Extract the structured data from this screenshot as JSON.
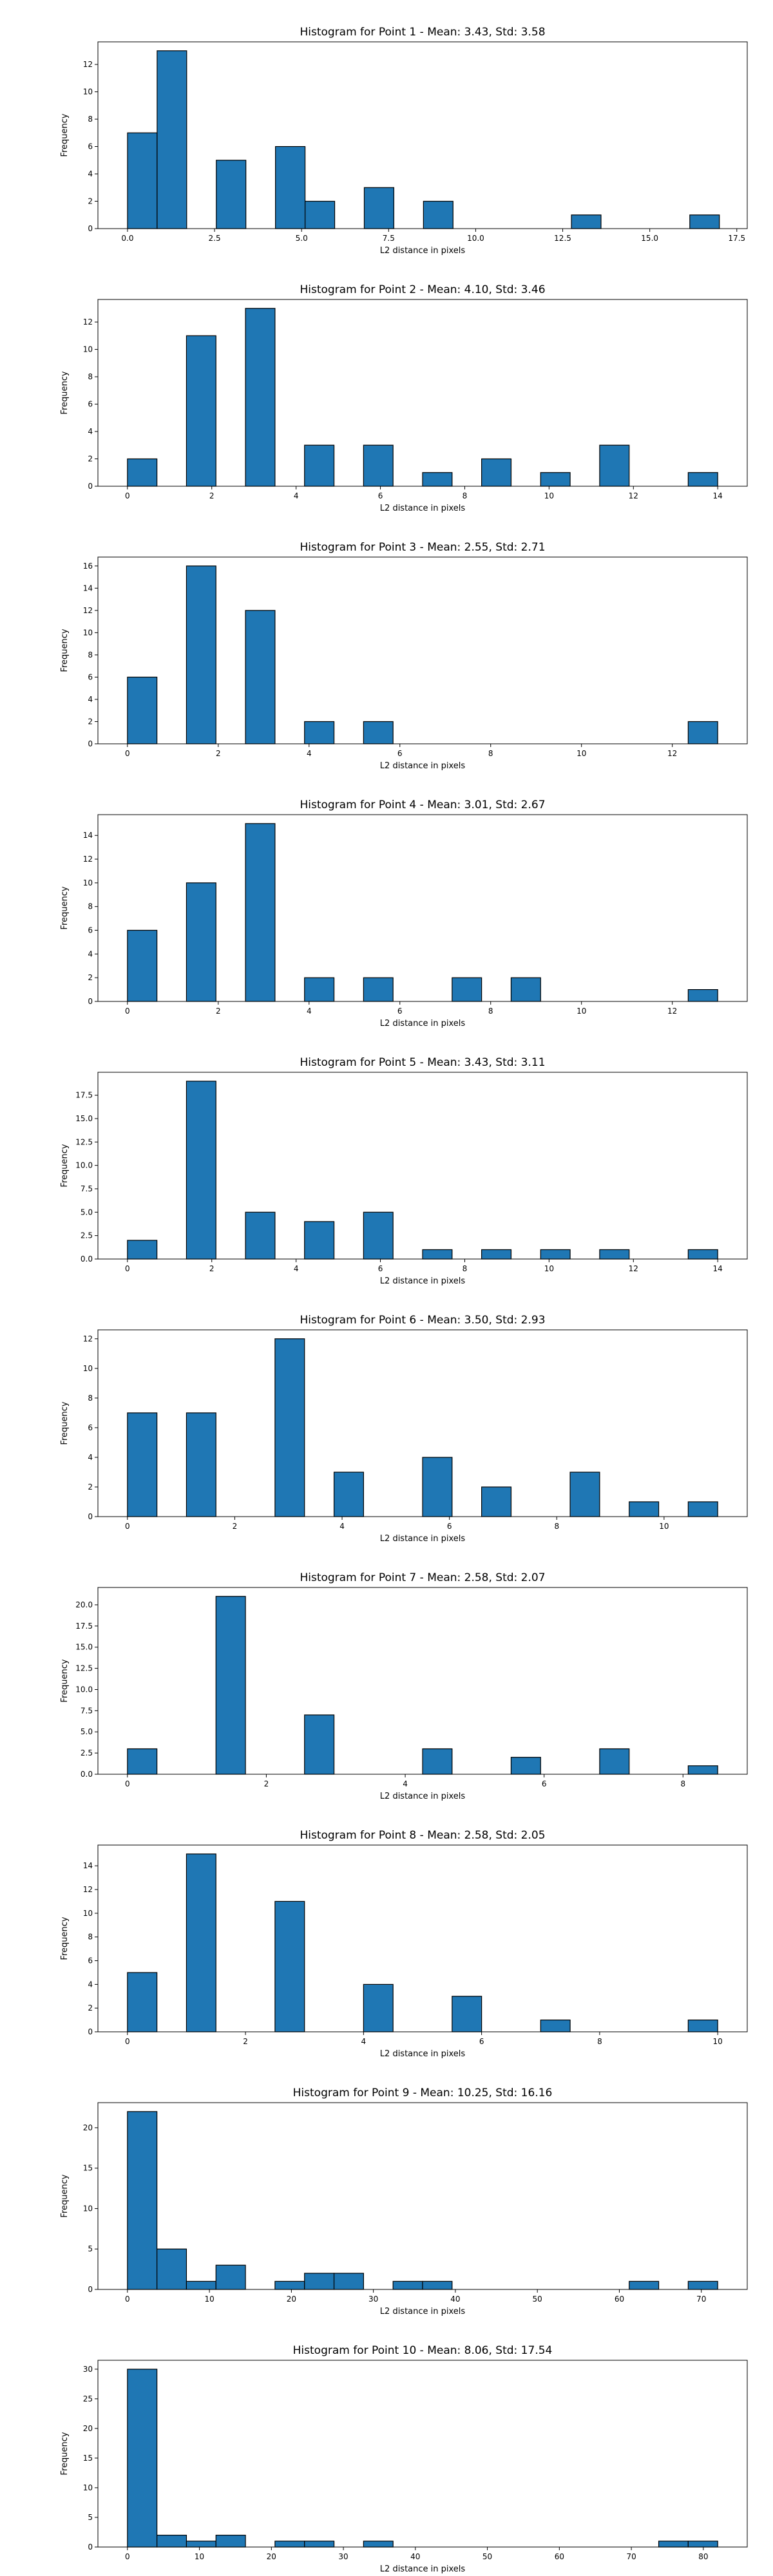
{
  "colors": {
    "bar_fill": "#1f77b4",
    "bar_edge": "#000000",
    "background": "#ffffff"
  },
  "chart_data": [
    {
      "type": "bar",
      "title": "Histogram for Point 1 - Mean: 3.43, Std: 3.58",
      "xlabel": "L2 distance in pixels",
      "ylabel": "Frequency",
      "xlim": [
        -0.85,
        17.8
      ],
      "ylim": [
        0,
        13.65
      ],
      "xticks": [
        0,
        2.5,
        5,
        7.5,
        10,
        12.5,
        15,
        17.5
      ],
      "xtick_labels": [
        "0.0",
        "2.5",
        "5.0",
        "7.5",
        "10.0",
        "12.5",
        "15.0",
        "17.5"
      ],
      "yticks": [
        0,
        2,
        4,
        6,
        8,
        10,
        12
      ],
      "ytick_labels": [
        "0",
        "2",
        "4",
        "6",
        "8",
        "10",
        "12"
      ],
      "bins": [
        {
          "x0": 0.0,
          "x1": 0.85,
          "count": 7
        },
        {
          "x0": 0.85,
          "x1": 1.7,
          "count": 13
        },
        {
          "x0": 2.55,
          "x1": 3.4,
          "count": 5
        },
        {
          "x0": 4.25,
          "x1": 5.1,
          "count": 6
        },
        {
          "x0": 5.1,
          "x1": 5.95,
          "count": 2
        },
        {
          "x0": 6.8,
          "x1": 7.65,
          "count": 3
        },
        {
          "x0": 8.5,
          "x1": 9.35,
          "count": 2
        },
        {
          "x0": 12.75,
          "x1": 13.6,
          "count": 1
        },
        {
          "x0": 16.15,
          "x1": 17.0,
          "count": 1
        }
      ]
    },
    {
      "type": "bar",
      "title": "Histogram for Point 2 - Mean: 4.10, Std: 3.46",
      "xlabel": "L2 distance in pixels",
      "ylabel": "Frequency",
      "xlim": [
        -0.7,
        14.7
      ],
      "ylim": [
        0,
        13.65
      ],
      "xticks": [
        0,
        2,
        4,
        6,
        8,
        10,
        12,
        14
      ],
      "xtick_labels": [
        "0",
        "2",
        "4",
        "6",
        "8",
        "10",
        "12",
        "14"
      ],
      "yticks": [
        0,
        2,
        4,
        6,
        8,
        10,
        12
      ],
      "ytick_labels": [
        "0",
        "2",
        "4",
        "6",
        "8",
        "10",
        "12"
      ],
      "bins": [
        {
          "x0": 0.0,
          "x1": 0.7,
          "count": 2
        },
        {
          "x0": 1.4,
          "x1": 2.1,
          "count": 11
        },
        {
          "x0": 2.8,
          "x1": 3.5,
          "count": 13
        },
        {
          "x0": 4.2,
          "x1": 4.9,
          "count": 3
        },
        {
          "x0": 5.6,
          "x1": 6.3,
          "count": 3
        },
        {
          "x0": 7.0,
          "x1": 7.7,
          "count": 1
        },
        {
          "x0": 8.4,
          "x1": 9.1,
          "count": 2
        },
        {
          "x0": 9.8,
          "x1": 10.5,
          "count": 1
        },
        {
          "x0": 11.2,
          "x1": 11.9,
          "count": 3
        },
        {
          "x0": 13.3,
          "x1": 14.0,
          "count": 1
        }
      ]
    },
    {
      "type": "bar",
      "title": "Histogram for Point 3 - Mean: 2.55, Std: 2.71",
      "xlabel": "L2 distance in pixels",
      "ylabel": "Frequency",
      "xlim": [
        -0.65,
        13.65
      ],
      "ylim": [
        0,
        16.8
      ],
      "xticks": [
        0,
        2,
        4,
        6,
        8,
        10,
        12
      ],
      "xtick_labels": [
        "0",
        "2",
        "4",
        "6",
        "8",
        "10",
        "12"
      ],
      "yticks": [
        0,
        2,
        4,
        6,
        8,
        10,
        12,
        14,
        16
      ],
      "ytick_labels": [
        "0",
        "2",
        "4",
        "6",
        "8",
        "10",
        "12",
        "14",
        "16"
      ],
      "bins": [
        {
          "x0": 0.0,
          "x1": 0.65,
          "count": 6
        },
        {
          "x0": 1.3,
          "x1": 1.95,
          "count": 16
        },
        {
          "x0": 2.6,
          "x1": 3.25,
          "count": 12
        },
        {
          "x0": 3.9,
          "x1": 4.55,
          "count": 2
        },
        {
          "x0": 5.2,
          "x1": 5.85,
          "count": 2
        },
        {
          "x0": 12.35,
          "x1": 13.0,
          "count": 2
        }
      ]
    },
    {
      "type": "bar",
      "title": "Histogram for Point 4 - Mean: 3.01, Std: 2.67",
      "xlabel": "L2 distance in pixels",
      "ylabel": "Frequency",
      "xlim": [
        -0.65,
        13.65
      ],
      "ylim": [
        0,
        15.75
      ],
      "xticks": [
        0,
        2,
        4,
        6,
        8,
        10,
        12
      ],
      "xtick_labels": [
        "0",
        "2",
        "4",
        "6",
        "8",
        "10",
        "12"
      ],
      "yticks": [
        0,
        2,
        4,
        6,
        8,
        10,
        12,
        14
      ],
      "ytick_labels": [
        "0",
        "2",
        "4",
        "6",
        "8",
        "10",
        "12",
        "14"
      ],
      "bins": [
        {
          "x0": 0.0,
          "x1": 0.65,
          "count": 6
        },
        {
          "x0": 1.3,
          "x1": 1.95,
          "count": 10
        },
        {
          "x0": 2.6,
          "x1": 3.25,
          "count": 15
        },
        {
          "x0": 3.9,
          "x1": 4.55,
          "count": 2
        },
        {
          "x0": 5.2,
          "x1": 5.85,
          "count": 2
        },
        {
          "x0": 7.15,
          "x1": 7.8,
          "count": 2
        },
        {
          "x0": 8.45,
          "x1": 9.1,
          "count": 2
        },
        {
          "x0": 12.35,
          "x1": 13.0,
          "count": 1
        }
      ]
    },
    {
      "type": "bar",
      "title": "Histogram for Point 5 - Mean: 3.43, Std: 3.11",
      "xlabel": "L2 distance in pixels",
      "ylabel": "Frequency",
      "xlim": [
        -0.7,
        14.7
      ],
      "ylim": [
        0,
        19.95
      ],
      "xticks": [
        0,
        2,
        4,
        6,
        8,
        10,
        12,
        14
      ],
      "xtick_labels": [
        "0",
        "2",
        "4",
        "6",
        "8",
        "10",
        "12",
        "14"
      ],
      "yticks": [
        0,
        2.5,
        5,
        7.5,
        10,
        12.5,
        15,
        17.5
      ],
      "ytick_labels": [
        "0.0",
        "2.5",
        "5.0",
        "7.5",
        "10.0",
        "12.5",
        "15.0",
        "17.5"
      ],
      "bins": [
        {
          "x0": 0.0,
          "x1": 0.7,
          "count": 2
        },
        {
          "x0": 1.4,
          "x1": 2.1,
          "count": 19
        },
        {
          "x0": 2.8,
          "x1": 3.5,
          "count": 5
        },
        {
          "x0": 4.2,
          "x1": 4.9,
          "count": 4
        },
        {
          "x0": 5.6,
          "x1": 6.3,
          "count": 5
        },
        {
          "x0": 7.0,
          "x1": 7.7,
          "count": 1
        },
        {
          "x0": 8.4,
          "x1": 9.1,
          "count": 1
        },
        {
          "x0": 9.8,
          "x1": 10.5,
          "count": 1
        },
        {
          "x0": 11.2,
          "x1": 11.9,
          "count": 1
        },
        {
          "x0": 13.3,
          "x1": 14.0,
          "count": 1
        }
      ]
    },
    {
      "type": "bar",
      "title": "Histogram for Point 6 - Mean: 3.50, Std: 2.93",
      "xlabel": "L2 distance in pixels",
      "ylabel": "Frequency",
      "xlim": [
        -0.55,
        11.55
      ],
      "ylim": [
        0,
        12.6
      ],
      "xticks": [
        0,
        2,
        4,
        6,
        8,
        10
      ],
      "xtick_labels": [
        "0",
        "2",
        "4",
        "6",
        "8",
        "10"
      ],
      "yticks": [
        0,
        2,
        4,
        6,
        8,
        10,
        12
      ],
      "ytick_labels": [
        "0",
        "2",
        "4",
        "6",
        "8",
        "10",
        "12"
      ],
      "bins": [
        {
          "x0": 0.0,
          "x1": 0.55,
          "count": 7
        },
        {
          "x0": 1.1,
          "x1": 1.65,
          "count": 7
        },
        {
          "x0": 2.75,
          "x1": 3.3,
          "count": 12
        },
        {
          "x0": 3.85,
          "x1": 4.4,
          "count": 3
        },
        {
          "x0": 5.5,
          "x1": 6.05,
          "count": 4
        },
        {
          "x0": 6.6,
          "x1": 7.15,
          "count": 2
        },
        {
          "x0": 8.25,
          "x1": 8.8,
          "count": 3
        },
        {
          "x0": 9.35,
          "x1": 9.9,
          "count": 1
        },
        {
          "x0": 10.45,
          "x1": 11.0,
          "count": 1
        }
      ]
    },
    {
      "type": "bar",
      "title": "Histogram for Point 7 - Mean: 2.58, Std: 2.07",
      "xlabel": "L2 distance in pixels",
      "ylabel": "Frequency",
      "xlim": [
        -0.425,
        8.925
      ],
      "ylim": [
        0,
        22.05
      ],
      "xticks": [
        0,
        2,
        4,
        6,
        8
      ],
      "xtick_labels": [
        "0",
        "2",
        "4",
        "6",
        "8"
      ],
      "yticks": [
        0,
        2.5,
        5,
        7.5,
        10,
        12.5,
        15,
        17.5,
        20
      ],
      "ytick_labels": [
        "0.0",
        "2.5",
        "5.0",
        "7.5",
        "10.0",
        "12.5",
        "15.0",
        "17.5",
        "20.0"
      ],
      "bins": [
        {
          "x0": 0.0,
          "x1": 0.425,
          "count": 3
        },
        {
          "x0": 1.275,
          "x1": 1.7,
          "count": 21
        },
        {
          "x0": 2.55,
          "x1": 2.975,
          "count": 7
        },
        {
          "x0": 4.25,
          "x1": 4.675,
          "count": 3
        },
        {
          "x0": 5.525,
          "x1": 5.95,
          "count": 2
        },
        {
          "x0": 6.8,
          "x1": 7.225,
          "count": 3
        },
        {
          "x0": 8.075,
          "x1": 8.5,
          "count": 1
        }
      ]
    },
    {
      "type": "bar",
      "title": "Histogram for Point 8 - Mean: 2.58, Std: 2.05",
      "xlabel": "L2 distance in pixels",
      "ylabel": "Frequency",
      "xlim": [
        -0.5,
        10.5
      ],
      "ylim": [
        0,
        15.75
      ],
      "xticks": [
        0,
        2,
        4,
        6,
        8,
        10
      ],
      "xtick_labels": [
        "0",
        "2",
        "4",
        "6",
        "8",
        "10"
      ],
      "yticks": [
        0,
        2,
        4,
        6,
        8,
        10,
        12,
        14
      ],
      "ytick_labels": [
        "0",
        "2",
        "4",
        "6",
        "8",
        "10",
        "12",
        "14"
      ],
      "bins": [
        {
          "x0": 0.0,
          "x1": 0.5,
          "count": 5
        },
        {
          "x0": 1.0,
          "x1": 1.5,
          "count": 15
        },
        {
          "x0": 2.5,
          "x1": 3.0,
          "count": 11
        },
        {
          "x0": 4.0,
          "x1": 4.5,
          "count": 4
        },
        {
          "x0": 5.5,
          "x1": 6.0,
          "count": 3
        },
        {
          "x0": 7.0,
          "x1": 7.5,
          "count": 1
        },
        {
          "x0": 9.5,
          "x1": 10.0,
          "count": 1
        }
      ]
    },
    {
      "type": "bar",
      "title": "Histogram for Point 9 - Mean: 10.25, Std: 16.16",
      "xlabel": "L2 distance in pixels",
      "ylabel": "Frequency",
      "xlim": [
        -3.6,
        75.6
      ],
      "ylim": [
        0,
        23.1
      ],
      "xticks": [
        0,
        10,
        20,
        30,
        40,
        50,
        60,
        70
      ],
      "xtick_labels": [
        "0",
        "10",
        "20",
        "30",
        "40",
        "50",
        "60",
        "70"
      ],
      "yticks": [
        0,
        5,
        10,
        15,
        20
      ],
      "ytick_labels": [
        "0",
        "5",
        "10",
        "15",
        "20"
      ],
      "bins": [
        {
          "x0": 0.0,
          "x1": 3.6,
          "count": 22
        },
        {
          "x0": 3.6,
          "x1": 7.2,
          "count": 5
        },
        {
          "x0": 7.2,
          "x1": 10.8,
          "count": 1
        },
        {
          "x0": 10.8,
          "x1": 14.4,
          "count": 3
        },
        {
          "x0": 18.0,
          "x1": 21.6,
          "count": 1
        },
        {
          "x0": 21.6,
          "x1": 25.2,
          "count": 2
        },
        {
          "x0": 25.2,
          "x1": 28.8,
          "count": 2
        },
        {
          "x0": 32.4,
          "x1": 36.0,
          "count": 1
        },
        {
          "x0": 36.0,
          "x1": 39.6,
          "count": 1
        },
        {
          "x0": 61.2,
          "x1": 64.8,
          "count": 1
        },
        {
          "x0": 68.4,
          "x1": 72.0,
          "count": 1
        }
      ]
    },
    {
      "type": "bar",
      "title": "Histogram for Point 10 - Mean: 8.06, Std: 17.54",
      "xlabel": "L2 distance in pixels",
      "ylabel": "Frequency",
      "xlim": [
        -4.1,
        86.1
      ],
      "ylim": [
        0,
        31.5
      ],
      "xticks": [
        0,
        10,
        20,
        30,
        40,
        50,
        60,
        70,
        80
      ],
      "xtick_labels": [
        "0",
        "10",
        "20",
        "30",
        "40",
        "50",
        "60",
        "70",
        "80"
      ],
      "yticks": [
        0,
        5,
        10,
        15,
        20,
        25,
        30
      ],
      "ytick_labels": [
        "0",
        "5",
        "10",
        "15",
        "20",
        "25",
        "30"
      ],
      "bins": [
        {
          "x0": 0.0,
          "x1": 4.1,
          "count": 30
        },
        {
          "x0": 4.1,
          "x1": 8.2,
          "count": 2
        },
        {
          "x0": 8.2,
          "x1": 12.3,
          "count": 1
        },
        {
          "x0": 12.3,
          "x1": 16.4,
          "count": 2
        },
        {
          "x0": 20.5,
          "x1": 24.6,
          "count": 1
        },
        {
          "x0": 24.6,
          "x1": 28.7,
          "count": 1
        },
        {
          "x0": 32.8,
          "x1": 36.9,
          "count": 1
        },
        {
          "x0": 73.8,
          "x1": 77.9,
          "count": 1
        },
        {
          "x0": 77.9,
          "x1": 82.0,
          "count": 1
        }
      ]
    }
  ]
}
